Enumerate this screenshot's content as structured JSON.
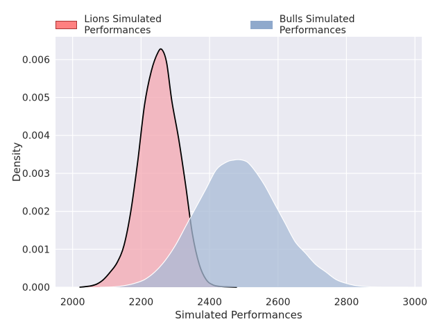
{
  "chart_data": {
    "type": "area",
    "title": "",
    "xlabel": "Simulated Performances",
    "ylabel": "Density",
    "xlim": [
      1950,
      3020
    ],
    "ylim": [
      0,
      0.0066
    ],
    "xticks": [
      2000,
      2200,
      2400,
      2600,
      2800,
      3000
    ],
    "yticks": [
      0.0,
      0.001,
      0.002,
      0.003,
      0.004,
      0.005,
      0.006
    ],
    "ytick_labels": [
      "0.000",
      "0.001",
      "0.002",
      "0.003",
      "0.004",
      "0.005",
      "0.006"
    ],
    "grid": true,
    "legend_position": "top",
    "series": [
      {
        "name": "Lions Simulated Performances",
        "color": "#ff6b6b",
        "fill": "#f4a7b0",
        "edge": "#000000",
        "x": [
          2020,
          2050,
          2070,
          2090,
          2110,
          2130,
          2150,
          2170,
          2190,
          2210,
          2230,
          2250,
          2262,
          2275,
          2290,
          2310,
          2330,
          2350,
          2370,
          2390,
          2410,
          2430,
          2450,
          2480
        ],
        "y": [
          0.0,
          3e-05,
          8e-05,
          0.0002,
          0.0004,
          0.00065,
          0.0011,
          0.002,
          0.0033,
          0.0048,
          0.0057,
          0.0062,
          0.00625,
          0.0059,
          0.0049,
          0.0039,
          0.0027,
          0.0014,
          0.0006,
          0.0002,
          6e-05,
          2e-05,
          1e-05,
          0.0
        ]
      },
      {
        "name": "Bulls Simulated Performances",
        "color": "#8fa9cc",
        "fill": "#a8bbd6",
        "edge": "#ffffff",
        "x": [
          2080,
          2120,
          2150,
          2180,
          2210,
          2240,
          2270,
          2300,
          2330,
          2360,
          2390,
          2420,
          2450,
          2470,
          2490,
          2510,
          2530,
          2560,
          2590,
          2620,
          2650,
          2680,
          2710,
          2740,
          2770,
          2800,
          2830,
          2870,
          2920,
          2980
        ],
        "y": [
          0.0,
          1e-05,
          4e-05,
          0.0001,
          0.0002,
          0.0004,
          0.0007,
          0.0011,
          0.0016,
          0.0021,
          0.0026,
          0.0031,
          0.0033,
          0.00335,
          0.00336,
          0.0033,
          0.0031,
          0.0027,
          0.0022,
          0.0017,
          0.0012,
          0.0009,
          0.0006,
          0.0004,
          0.0002,
          0.0001,
          4e-05,
          1e-05,
          0.0,
          0.0
        ]
      }
    ]
  }
}
